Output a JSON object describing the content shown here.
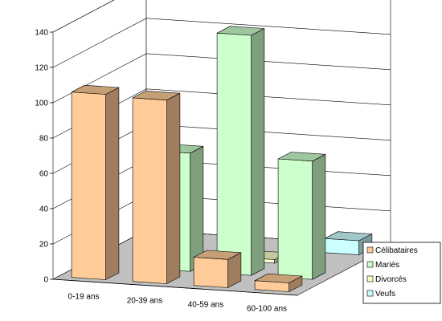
{
  "chart_data": {
    "type": "bar",
    "title": "",
    "xlabel": "",
    "ylabel": "",
    "ylim": [
      0,
      140
    ],
    "yticks": [
      0,
      20,
      40,
      60,
      80,
      100,
      120,
      140
    ],
    "categories": [
      "0-19 ans",
      "20-39 ans",
      "40-59 ans",
      "60-100 ans"
    ],
    "series": [
      {
        "name": "Célibataires",
        "color": "#ffcc99",
        "values": [
          105,
          104,
          16,
          5
        ]
      },
      {
        "name": "Mariés",
        "color": "#ccffcc",
        "values": [
          0,
          67,
          136,
          67
        ]
      },
      {
        "name": "Divorcés",
        "color": "#ffffcc",
        "values": [
          0,
          0,
          2,
          0
        ]
      },
      {
        "name": "Veufs",
        "color": "#ccffff",
        "values": [
          0,
          0,
          0,
          8
        ]
      }
    ],
    "legend_position": "right",
    "grid": true
  }
}
